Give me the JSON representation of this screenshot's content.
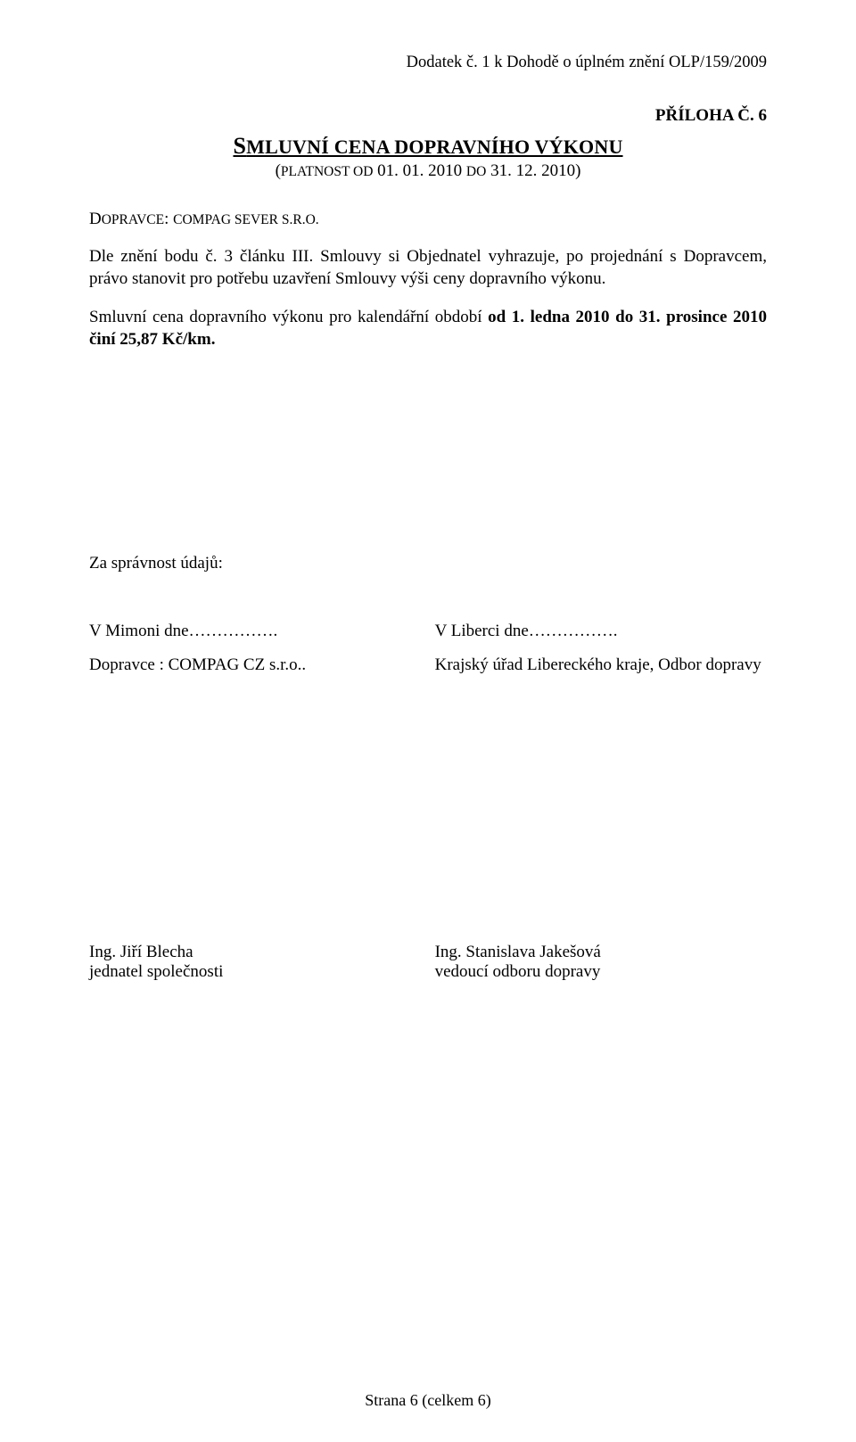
{
  "header": {
    "top_right": "Dodatek č. 1 k Dohodě o úplném znění OLP/159/2009",
    "attachment_prefix": "P",
    "attachment_rest": "ŘÍLOHA Č. 6"
  },
  "title": {
    "main_first": "S",
    "main_rest": "MLUVNÍ CENA DOPRAVNÍHO VÝKONU",
    "sub_open": "(",
    "sub_sc": "PLATNOST OD",
    "sub_dates": " 01. 01. 2010 ",
    "sub_sc2": "DO",
    "sub_dates2": " 31. 12. 2010)",
    "operator_label_first": "D",
    "operator_label_rest": "OPRAVCE",
    "operator_colon": ": ",
    "operator_value": "COMPAG SEVER S.R.O."
  },
  "body": {
    "para1": "Dle  znění bodu  č.   3   článku   III.  Smlouvy  si  Objednatel  vyhrazuje,  po  projednání s Dopravcem, právo stanovit pro potřebu uzavření Smlouvy výši ceny dopravního výkonu.",
    "para2_a": "Smluvní cena dopravního výkonu pro kalendářní období ",
    "para2_b": "od 1. ledna 2010 do 31. prosince 2010  činí 25,87 Kč/km."
  },
  "correctness": "Za správnost údajů:",
  "sig": {
    "left_place": "V Mimoni dne……………. ",
    "right_place": "V Liberci dne…………….",
    "left_party": "Dopravce : COMPAG CZ s.r.o..",
    "right_party": "Krajský úřad Libereckého kraje, Odbor dopravy",
    "left_name": "Ing. Jiří Blecha",
    "left_role": "jednatel společnosti",
    "right_name": "Ing. Stanislava Jakešová",
    "right_role": "vedoucí odboru dopravy"
  },
  "footer": "Strana 6 (celkem 6)"
}
